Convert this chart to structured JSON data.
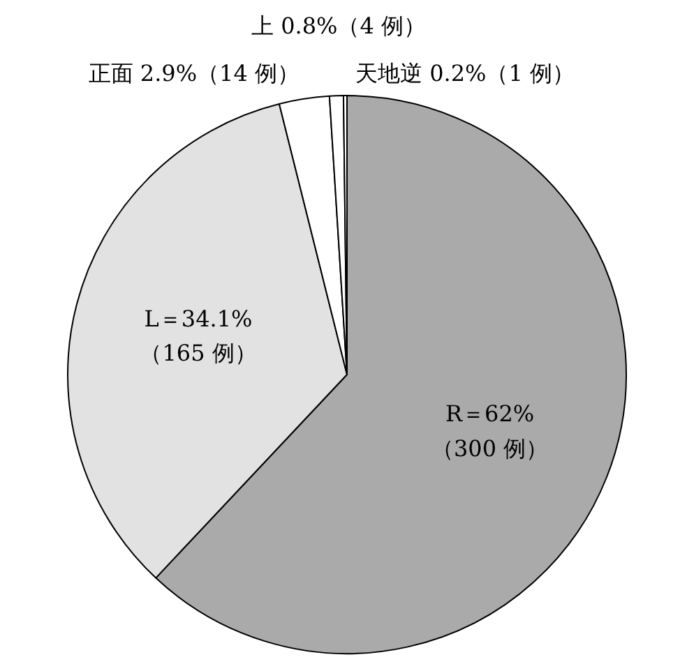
{
  "chart_data": {
    "type": "pie",
    "categories": [
      "R＝62%\n（300 例）",
      "L＝34.1%\n（165 例）",
      "正面 2.9%（14 例）",
      "上 0.8%（4 例）",
      "天地逆 0.2%（1 例）"
    ],
    "values": [
      62,
      34.1,
      2.9,
      0.8,
      0.2
    ],
    "colors": [
      "#aaaaaa",
      "#e2e2e2",
      "#ffffff",
      "#ffffff",
      "#ffffff"
    ]
  }
}
